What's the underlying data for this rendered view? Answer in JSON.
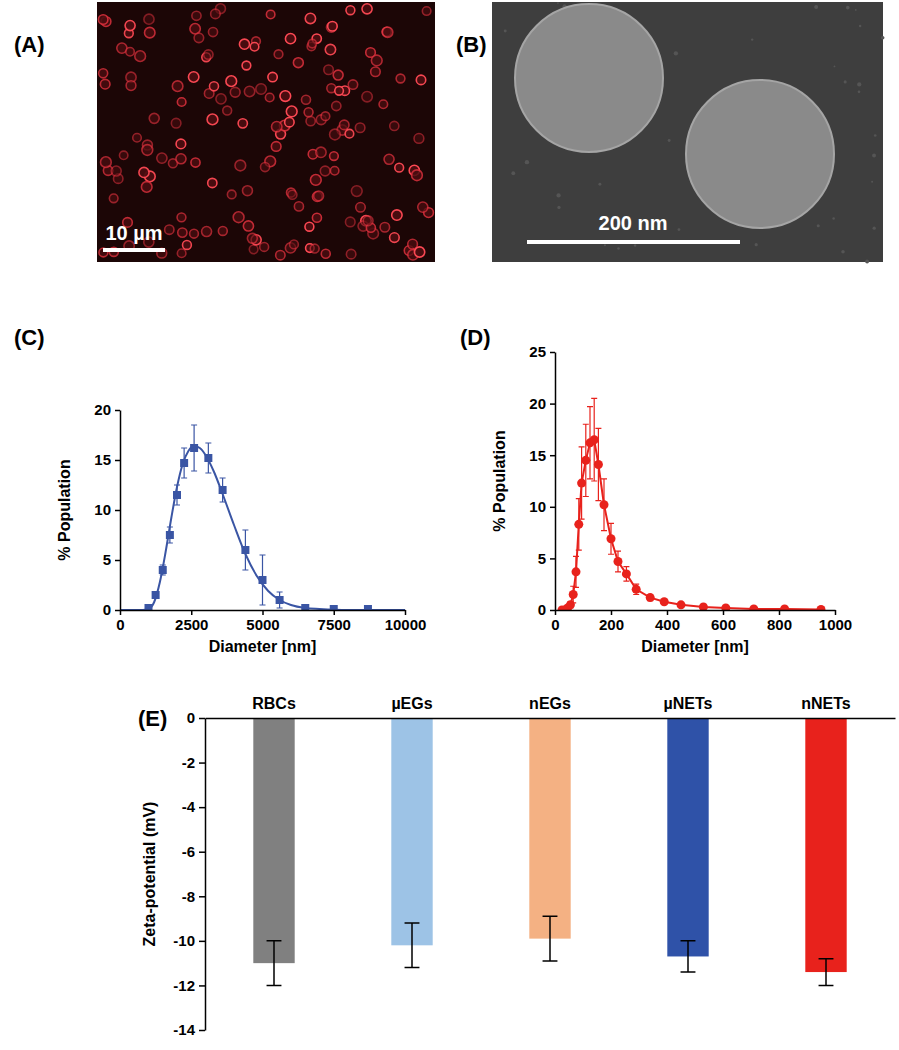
{
  "chart_data": [
    {
      "type": "image",
      "title": "(A)",
      "annotations": [
        "10 µm"
      ]
    },
    {
      "type": "image",
      "title": "(B)",
      "annotations": [
        "200 nm"
      ]
    },
    {
      "type": "scatter",
      "title": "(C)",
      "x_label": "Diameter [nm]",
      "y_label": "% Population",
      "xlim": [
        0,
        10000
      ],
      "xticks": [
        0,
        2500,
        5000,
        7500,
        10000
      ],
      "ylim": [
        0,
        20
      ],
      "yticks": [
        0,
        5,
        10,
        15,
        20
      ],
      "series": [
        {
          "type": "scatter",
          "color": "#3a55a4",
          "marker": "square",
          "x": [
            1000,
            1250,
            1500,
            1750,
            2000,
            2250,
            2600,
            3100,
            3600,
            4400,
            5000,
            5600,
            6500,
            7500,
            8700
          ],
          "values": [
            0.2,
            1.5,
            4,
            7.5,
            11.5,
            14.7,
            16.2,
            15.2,
            12,
            6,
            3,
            1,
            0.2,
            0.1,
            0.1
          ],
          "errors": [
            0,
            0.3,
            0.5,
            0.8,
            1,
            1.5,
            2.3,
            1.5,
            1.2,
            2,
            2.5,
            0.8,
            0,
            0,
            0
          ]
        },
        {
          "type": "line",
          "color": "#3a55a4",
          "line_style": "solid",
          "x": [
            0,
            800,
            1000,
            1200,
            1400,
            1600,
            1800,
            2000,
            2200,
            2400,
            2600,
            2800,
            3000,
            3300,
            3600,
            4000,
            4400,
            4800,
            5200,
            5600,
            6000,
            6500,
            7000,
            8000,
            10000
          ],
          "values": [
            0,
            0,
            0.1,
            0.8,
            2.8,
            5.8,
            9.2,
            12.3,
            14.6,
            15.9,
            16.4,
            16.2,
            15.5,
            13.8,
            11.6,
            8.5,
            5.6,
            3.4,
            1.9,
            1.0,
            0.5,
            0.2,
            0.1,
            0,
            0
          ]
        }
      ]
    },
    {
      "type": "scatter",
      "title": "(D)",
      "x_label": "Diameter [nm]",
      "y_label": "% Population",
      "xlim": [
        0,
        1000
      ],
      "xticks": [
        0,
        200,
        400,
        600,
        800,
        1000
      ],
      "ylim": [
        0,
        25
      ],
      "yticks": [
        0,
        5,
        10,
        15,
        20,
        25
      ],
      "series": [
        {
          "type": "line",
          "color": "#e8221c",
          "marker": "circle",
          "line_style": "solid",
          "x": [
            25,
            35,
            45,
            55,
            65,
            75,
            85,
            95,
            110,
            125,
            140,
            155,
            175,
            200,
            225,
            255,
            290,
            340,
            390,
            450,
            530,
            610,
            710,
            820,
            950
          ],
          "values": [
            0,
            0,
            0.2,
            0.5,
            1.5,
            3.7,
            8.3,
            12.3,
            14.5,
            16.2,
            16.5,
            14.1,
            10.2,
            6.9,
            4.7,
            3.5,
            2,
            1.2,
            0.8,
            0.5,
            0.3,
            0.2,
            0.1,
            0.1,
            0.05
          ],
          "errors": [
            0,
            0,
            0.1,
            0.3,
            0.8,
            1.5,
            2.5,
            3.5,
            3.5,
            3.5,
            4,
            3.5,
            2.5,
            1.5,
            1,
            0.7,
            0.5,
            0.3,
            0.2,
            0.1,
            0.1,
            0,
            0,
            0,
            0
          ]
        }
      ]
    },
    {
      "type": "bar",
      "title": "(E)",
      "y_label": "Zeta-potential (mV)",
      "categories": [
        "RBCs",
        "µEGs",
        "nEGs",
        "µNETs",
        "nNETs"
      ],
      "values": [
        -11.0,
        -10.2,
        -9.9,
        -10.7,
        -11.4
      ],
      "errors": [
        1.0,
        1.0,
        1.0,
        0.7,
        0.6
      ],
      "colors": [
        "#808080",
        "#9dc3e6",
        "#f4b183",
        "#2f52a8",
        "#e8221c"
      ],
      "ylim": [
        -14,
        0
      ],
      "yticks": [
        -14,
        -12,
        -10,
        -8,
        -6,
        -4,
        -2,
        0
      ]
    }
  ]
}
